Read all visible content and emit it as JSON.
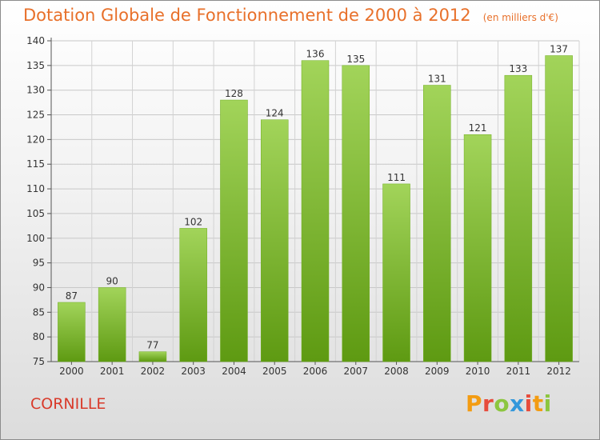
{
  "header": {
    "title": "Dotation Globale de Fonctionnement de 2000 à 2012",
    "subtitle": "(en milliers d'€)"
  },
  "footer": {
    "city": "CORNILLE",
    "brand": "Proxiti",
    "brand_colors": [
      "#f39c12",
      "#e74c3c",
      "#8cc63f",
      "#3498db",
      "#e74c3c",
      "#f39c12",
      "#8cc63f"
    ]
  },
  "colors": {
    "bar_light": "#a2d45a",
    "bar_dark": "#5e9a12",
    "title": "#e8702a",
    "city": "#d93a2a"
  },
  "chart_data": {
    "type": "bar",
    "categories": [
      "2000",
      "2001",
      "2002",
      "2003",
      "2004",
      "2005",
      "2006",
      "2007",
      "2008",
      "2009",
      "2010",
      "2011",
      "2012"
    ],
    "values": [
      87,
      90,
      77,
      102,
      128,
      124,
      136,
      135,
      111,
      131,
      121,
      133,
      137
    ],
    "title": "Dotation Globale de Fonctionnement de 2000 à 2012",
    "subtitle": "(en milliers d'€)",
    "ylim": [
      75,
      140
    ],
    "yticks": [
      75,
      80,
      85,
      90,
      95,
      100,
      105,
      110,
      115,
      120,
      125,
      130,
      135,
      140
    ],
    "grid": true,
    "data_labels": true
  }
}
